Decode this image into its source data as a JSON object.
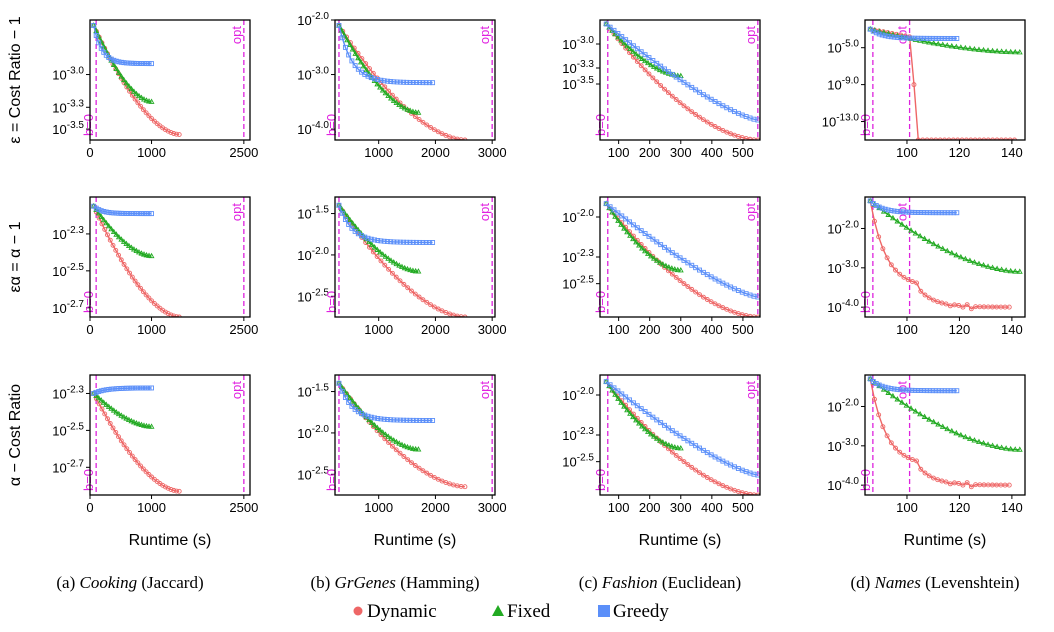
{
  "colors": {
    "Dynamic": "#ee6666",
    "Fixed": "#22aa22",
    "Greedy": "#5b8ff9",
    "vline": "#dd22dd"
  },
  "row_labels": [
    "ε = Cost Ratio − 1",
    "εα = α − 1",
    "α − Cost Ratio"
  ],
  "xlabel": "Runtime (s)",
  "captions": [
    {
      "prefix": "(a) ",
      "name": "Cooking",
      "suffix": " (Jaccard)"
    },
    {
      "prefix": "(b) ",
      "name": "GrGenes",
      "suffix": " (Hamming)"
    },
    {
      "prefix": "(c) ",
      "name": "Fashion",
      "suffix": " (Euclidean)"
    },
    {
      "prefix": "(d) ",
      "name": "Names",
      "suffix": " (Levenshtein)"
    }
  ],
  "legend": [
    {
      "name": "Dynamic",
      "marker": "circle",
      "color": "#ee6666"
    },
    {
      "name": "Fixed",
      "marker": "triangle",
      "color": "#22aa22"
    },
    {
      "name": "Greedy",
      "marker": "square",
      "color": "#5b8ff9"
    }
  ],
  "vline_labels": {
    "b0": "b=0",
    "opt": "opt"
  },
  "chart_data": [
    {
      "type": "line",
      "log_y": true,
      "row": 0,
      "col": 0,
      "xlim": [
        0,
        2600
      ],
      "ylim": [
        -3.6,
        -2.5
      ],
      "xticks": [
        0,
        1000,
        2500
      ],
      "xticklabels": [
        "0",
        "1000",
        "2500"
      ],
      "yticks": [
        -3.0,
        -3.3,
        -3.5
      ],
      "yticklabels": [
        "10^-3.0",
        "10^-3.3",
        "10^-3.5"
      ],
      "vlines": [
        {
          "label": "b=0",
          "x": 100
        },
        {
          "label": "opt",
          "x": 2500
        }
      ],
      "series": [
        {
          "name": "Dynamic",
          "x_range": [
            60,
            1450
          ],
          "y_start": -2.55,
          "y_end": -3.55,
          "n": 32,
          "shape": "conv"
        },
        {
          "name": "Fixed",
          "x_range": [
            60,
            1000
          ],
          "y_start": -2.55,
          "y_end": -3.25,
          "n": 24,
          "shape": "conv"
        },
        {
          "name": "Greedy",
          "x_range": [
            60,
            1000
          ],
          "y_start": -2.55,
          "y_end": -2.9,
          "n": 24,
          "shape": "plateau"
        }
      ]
    },
    {
      "type": "line",
      "log_y": true,
      "row": 0,
      "col": 1,
      "xlim": [
        230,
        3050
      ],
      "ylim": [
        -4.2,
        -2.0
      ],
      "xticks": [
        1000,
        2000,
        3000
      ],
      "xticklabels": [
        "1000",
        "2000",
        "3000"
      ],
      "yticks": [
        -2.0,
        -3.0,
        -4.0
      ],
      "yticklabels": [
        "10^-2.0",
        "10^-3.0",
        "10^-4.0"
      ],
      "vlines": [
        {
          "label": "b=0",
          "x": 300
        },
        {
          "label": "opt",
          "x": 3000
        }
      ],
      "series": [
        {
          "name": "Dynamic",
          "x_range": [
            300,
            2520
          ],
          "y_start": -2.1,
          "y_end": -4.2,
          "n": 34,
          "shape": "conv"
        },
        {
          "name": "Fixed",
          "x_range": [
            300,
            1700
          ],
          "y_start": -2.1,
          "y_end": -3.7,
          "n": 30,
          "shape": "conv"
        },
        {
          "name": "Greedy",
          "x_range": [
            300,
            1950
          ],
          "y_start": -2.1,
          "y_end": -3.15,
          "n": 30,
          "shape": "plateau"
        }
      ]
    },
    {
      "type": "line",
      "log_y": true,
      "row": 0,
      "col": 2,
      "xlim": [
        40,
        555
      ],
      "ylim": [
        -4.2,
        -2.7
      ],
      "xticks": [
        100,
        200,
        300,
        400,
        500
      ],
      "xticklabels": [
        "100",
        "200",
        "300",
        "400",
        "500"
      ],
      "yticks": [
        -3.0,
        -3.3,
        -3.5
      ],
      "yticklabels": [
        "10^-3.0",
        "10^-3.3",
        "10^-3.5"
      ],
      "vlines": [
        {
          "label": "b=0",
          "x": 65
        },
        {
          "label": "opt",
          "x": 548
        }
      ],
      "series": [
        {
          "name": "Dynamic",
          "x_range": [
            60,
            548
          ],
          "y_start": -2.75,
          "y_end": -4.2,
          "n": 40,
          "shape": "conv"
        },
        {
          "name": "Fixed",
          "x_range": [
            60,
            300
          ],
          "y_start": -2.75,
          "y_end": -3.4,
          "n": 26,
          "shape": "conv"
        },
        {
          "name": "Greedy",
          "x_range": [
            60,
            548
          ],
          "y_start": -2.75,
          "y_end": -3.95,
          "n": 40,
          "shape": "conv2"
        }
      ]
    },
    {
      "type": "line",
      "log_y": true,
      "row": 0,
      "col": 3,
      "xlim": [
        84,
        145
      ],
      "ylim": [
        -15.0,
        -2.0
      ],
      "xticks": [
        100,
        120,
        140
      ],
      "xticklabels": [
        "100",
        "120",
        "140"
      ],
      "yticks": [
        -5.0,
        -9.0,
        -13.0
      ],
      "yticklabels": [
        "10^-5.0",
        "10^-9.0",
        "10^-13.0"
      ],
      "vlines": [
        {
          "label": "b=0",
          "x": 87
        },
        {
          "label": "opt",
          "x": 101
        }
      ],
      "series": [
        {
          "name": "Dynamic",
          "x_range": [
            86,
            141
          ],
          "y_start": -3.0,
          "y_end": -15.0,
          "n": 34,
          "shape": "cliff"
        },
        {
          "name": "Fixed",
          "x_range": [
            86,
            143
          ],
          "y_start": -3.0,
          "y_end": -5.5,
          "n": 34,
          "shape": "conv"
        },
        {
          "name": "Greedy",
          "x_range": [
            86,
            119
          ],
          "y_start": -3.0,
          "y_end": -4.0,
          "n": 30,
          "shape": "plateau"
        }
      ]
    },
    {
      "type": "line",
      "log_y": true,
      "row": 1,
      "col": 0,
      "xlim": [
        0,
        2600
      ],
      "ylim": [
        -2.75,
        -2.1
      ],
      "xticks": [
        0,
        1000,
        2500
      ],
      "xticklabels": [
        "0",
        "1000",
        "2500"
      ],
      "yticks": [
        -2.3,
        -2.5,
        -2.7
      ],
      "yticklabels": [
        "10^-2.3",
        "10^-2.5",
        "10^-2.7"
      ],
      "vlines": [
        {
          "label": "b=0",
          "x": 100
        },
        {
          "label": "opt",
          "x": 2500
        }
      ],
      "series": [
        {
          "name": "Dynamic",
          "x_range": [
            60,
            1450
          ],
          "y_start": -2.15,
          "y_end": -2.75,
          "n": 32,
          "shape": "conv"
        },
        {
          "name": "Fixed",
          "x_range": [
            60,
            1000
          ],
          "y_start": -2.15,
          "y_end": -2.42,
          "n": 24,
          "shape": "conv"
        },
        {
          "name": "Greedy",
          "x_range": [
            60,
            1000
          ],
          "y_start": -2.15,
          "y_end": -2.19,
          "n": 24,
          "shape": "plateau"
        }
      ]
    },
    {
      "type": "line",
      "log_y": true,
      "row": 1,
      "col": 1,
      "xlim": [
        230,
        3050
      ],
      "ylim": [
        -2.75,
        -1.3
      ],
      "xticks": [
        1000,
        2000,
        3000
      ],
      "xticklabels": [
        "1000",
        "2000",
        "3000"
      ],
      "yticks": [
        -1.5,
        -2.0,
        -2.5
      ],
      "yticklabels": [
        "10^-1.5",
        "10^-2.0",
        "10^-2.5"
      ],
      "vlines": [
        {
          "label": "b=0",
          "x": 300
        },
        {
          "label": "opt",
          "x": 3000
        }
      ],
      "series": [
        {
          "name": "Dynamic",
          "x_range": [
            300,
            2520
          ],
          "y_start": -1.4,
          "y_end": -2.75,
          "n": 34,
          "shape": "conv"
        },
        {
          "name": "Fixed",
          "x_range": [
            300,
            1700
          ],
          "y_start": -1.4,
          "y_end": -2.2,
          "n": 30,
          "shape": "conv"
        },
        {
          "name": "Greedy",
          "x_range": [
            300,
            1950
          ],
          "y_start": -1.4,
          "y_end": -1.85,
          "n": 30,
          "shape": "plateau"
        }
      ]
    },
    {
      "type": "line",
      "log_y": true,
      "row": 1,
      "col": 2,
      "xlim": [
        40,
        555
      ],
      "ylim": [
        -2.75,
        -1.85
      ],
      "xticks": [
        100,
        200,
        300,
        400,
        500
      ],
      "xticklabels": [
        "100",
        "200",
        "300",
        "400",
        "500"
      ],
      "yticks": [
        -2.0,
        -2.3,
        -2.5
      ],
      "yticklabels": [
        "10^-2.0",
        "10^-2.3",
        "10^-2.5"
      ],
      "vlines": [
        {
          "label": "b=0",
          "x": 65
        },
        {
          "label": "opt",
          "x": 548
        }
      ],
      "series": [
        {
          "name": "Dynamic",
          "x_range": [
            60,
            548
          ],
          "y_start": -1.9,
          "y_end": -2.75,
          "n": 40,
          "shape": "conv"
        },
        {
          "name": "Fixed",
          "x_range": [
            60,
            300
          ],
          "y_start": -1.9,
          "y_end": -2.4,
          "n": 26,
          "shape": "conv"
        },
        {
          "name": "Greedy",
          "x_range": [
            60,
            548
          ],
          "y_start": -1.9,
          "y_end": -2.6,
          "n": 40,
          "shape": "conv2"
        }
      ]
    },
    {
      "type": "line",
      "log_y": true,
      "row": 1,
      "col": 3,
      "xlim": [
        84,
        145
      ],
      "ylim": [
        -4.25,
        -1.2
      ],
      "xticks": [
        100,
        120,
        140
      ],
      "xticklabels": [
        "100",
        "120",
        "140"
      ],
      "yticks": [
        -2.0,
        -3.0,
        -4.0
      ],
      "yticklabels": [
        "10^-2.0",
        "10^-3.0",
        "10^-4.0"
      ],
      "vlines": [
        {
          "label": "b=0",
          "x": 87
        },
        {
          "label": "opt",
          "x": 101
        }
      ],
      "series": [
        {
          "name": "Dynamic",
          "x_range": [
            86,
            139
          ],
          "y_start": -1.3,
          "y_end": -4.0,
          "n": 34,
          "shape": "drop"
        },
        {
          "name": "Fixed",
          "x_range": [
            86,
            143
          ],
          "y_start": -1.3,
          "y_end": -3.1,
          "n": 34,
          "shape": "conv"
        },
        {
          "name": "Greedy",
          "x_range": [
            86,
            119
          ],
          "y_start": -1.3,
          "y_end": -1.6,
          "n": 30,
          "shape": "plateau"
        }
      ]
    },
    {
      "type": "line",
      "log_y": true,
      "row": 2,
      "col": 0,
      "xlim": [
        0,
        2600
      ],
      "ylim": [
        -2.85,
        -2.2
      ],
      "xticks": [
        0,
        1000,
        2500
      ],
      "xticklabels": [
        "0",
        "1000",
        "2500"
      ],
      "yticks": [
        -2.3,
        -2.5,
        -2.7
      ],
      "yticklabels": [
        "10^-2.3",
        "10^-2.5",
        "10^-2.7"
      ],
      "vlines": [
        {
          "label": "b=0",
          "x": 100
        },
        {
          "label": "opt",
          "x": 2500
        }
      ],
      "series": [
        {
          "name": "Dynamic",
          "x_range": [
            60,
            1450
          ],
          "y_start": -2.3,
          "y_end": -2.83,
          "n": 32,
          "shape": "conv"
        },
        {
          "name": "Fixed",
          "x_range": [
            60,
            1000
          ],
          "y_start": -2.3,
          "y_end": -2.48,
          "n": 24,
          "shape": "conv"
        },
        {
          "name": "Greedy",
          "x_range": [
            60,
            1000
          ],
          "y_start": -2.3,
          "y_end": -2.27,
          "n": 24,
          "shape": "rise"
        }
      ]
    },
    {
      "type": "line",
      "log_y": true,
      "row": 2,
      "col": 1,
      "xlim": [
        230,
        3050
      ],
      "ylim": [
        -2.75,
        -1.3
      ],
      "xticks": [
        1000,
        2000,
        3000
      ],
      "xticklabels": [
        "1000",
        "2000",
        "3000"
      ],
      "yticks": [
        -1.5,
        -2.0,
        -2.5
      ],
      "yticklabels": [
        "10^-1.5",
        "10^-2.0",
        "10^-2.5"
      ],
      "vlines": [
        {
          "label": "b=0",
          "x": 300
        },
        {
          "label": "opt",
          "x": 3000
        }
      ],
      "series": [
        {
          "name": "Dynamic",
          "x_range": [
            300,
            2520
          ],
          "y_start": -1.4,
          "y_end": -2.65,
          "n": 34,
          "shape": "conv"
        },
        {
          "name": "Fixed",
          "x_range": [
            300,
            1700
          ],
          "y_start": -1.4,
          "y_end": -2.2,
          "n": 30,
          "shape": "conv"
        },
        {
          "name": "Greedy",
          "x_range": [
            300,
            1950
          ],
          "y_start": -1.4,
          "y_end": -1.85,
          "n": 30,
          "shape": "plateau"
        }
      ]
    },
    {
      "type": "line",
      "log_y": true,
      "row": 2,
      "col": 2,
      "xlim": [
        40,
        555
      ],
      "ylim": [
        -2.75,
        -1.85
      ],
      "xticks": [
        100,
        200,
        300,
        400,
        500
      ],
      "xticklabels": [
        "100",
        "200",
        "300",
        "400",
        "500"
      ],
      "yticks": [
        -2.0,
        -2.3,
        -2.5
      ],
      "yticklabels": [
        "10^-2.0",
        "10^-2.3",
        "10^-2.5"
      ],
      "vlines": [
        {
          "label": "b=0",
          "x": 65
        },
        {
          "label": "opt",
          "x": 548
        }
      ],
      "series": [
        {
          "name": "Dynamic",
          "x_range": [
            60,
            548
          ],
          "y_start": -1.9,
          "y_end": -2.75,
          "n": 40,
          "shape": "conv"
        },
        {
          "name": "Fixed",
          "x_range": [
            60,
            300
          ],
          "y_start": -1.9,
          "y_end": -2.4,
          "n": 26,
          "shape": "conv"
        },
        {
          "name": "Greedy",
          "x_range": [
            60,
            548
          ],
          "y_start": -1.9,
          "y_end": -2.6,
          "n": 40,
          "shape": "conv2"
        }
      ]
    },
    {
      "type": "line",
      "log_y": true,
      "row": 2,
      "col": 3,
      "xlim": [
        84,
        145
      ],
      "ylim": [
        -4.25,
        -1.2
      ],
      "xticks": [
        100,
        120,
        140
      ],
      "xticklabels": [
        "100",
        "120",
        "140"
      ],
      "yticks": [
        -2.0,
        -3.0,
        -4.0
      ],
      "yticklabels": [
        "10^-2.0",
        "10^-3.0",
        "10^-4.0"
      ],
      "vlines": [
        {
          "label": "b=0",
          "x": 87
        },
        {
          "label": "opt",
          "x": 101
        }
      ],
      "series": [
        {
          "name": "Dynamic",
          "x_range": [
            86,
            139
          ],
          "y_start": -1.3,
          "y_end": -4.0,
          "n": 34,
          "shape": "drop"
        },
        {
          "name": "Fixed",
          "x_range": [
            86,
            143
          ],
          "y_start": -1.3,
          "y_end": -3.1,
          "n": 34,
          "shape": "conv"
        },
        {
          "name": "Greedy",
          "x_range": [
            86,
            119
          ],
          "y_start": -1.3,
          "y_end": -1.6,
          "n": 30,
          "shape": "plateau"
        }
      ]
    }
  ]
}
